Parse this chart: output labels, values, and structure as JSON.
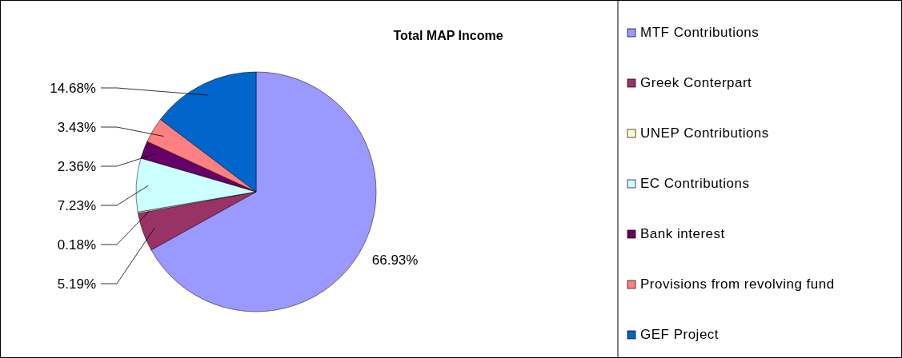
{
  "chart_data": {
    "type": "pie",
    "title": "Total MAP Income",
    "categories": [
      "MTF Contributions",
      "Greek Conterpart",
      "UNEP Contributions",
      "EC Contributions",
      "Bank interest",
      "Provisions from revolving fund",
      "GEF Project"
    ],
    "values": [
      66.93,
      5.19,
      0.18,
      7.23,
      2.36,
      3.43,
      14.68
    ],
    "value_labels": [
      "66.93%",
      "5.19%",
      "0.18%",
      "7.23%",
      "2.36%",
      "3.43%",
      "14.68%"
    ],
    "colors": [
      "#9999ff",
      "#993366",
      "#ffffcc",
      "#ccffff",
      "#660066",
      "#ff8080",
      "#0066cc"
    ],
    "legend": "right"
  }
}
